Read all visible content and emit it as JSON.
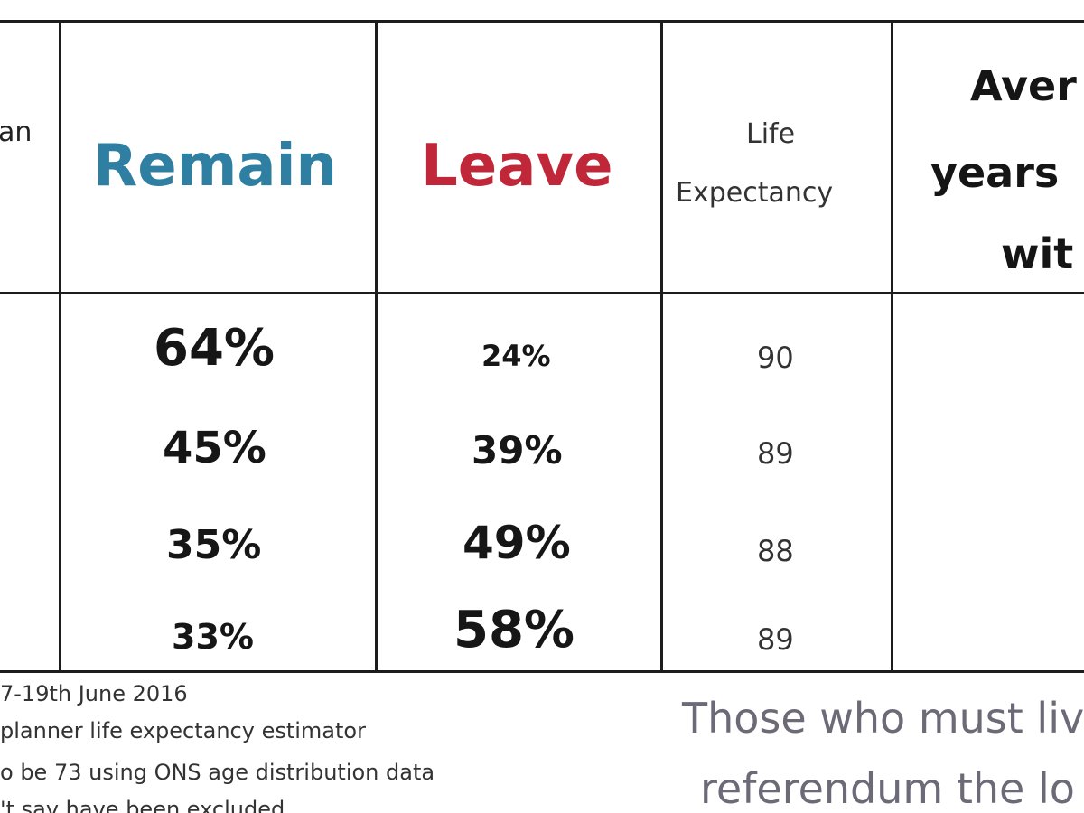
{
  "header": {
    "col0_partial": "an",
    "remain": "Remain",
    "leave": "Leave",
    "life_expectancy_line1": "Life",
    "life_expectancy_line2": "Expectancy",
    "avg_line1": "Aver",
    "avg_line2": "years",
    "avg_line3": "wit"
  },
  "rows": [
    {
      "remain": "64%",
      "leave": "24%",
      "life": "90"
    },
    {
      "remain": "45%",
      "leave": "39%",
      "life": "89"
    },
    {
      "remain": "35%",
      "leave": "49%",
      "life": "88"
    },
    {
      "remain": "33%",
      "leave": "58%",
      "life": "89"
    }
  ],
  "footnotes": {
    "line1": "7-19th June 2016",
    "line2": "planner life expectancy estimator",
    "line3": "o be 73 using ONS age distribution data",
    "line4": "'t say have been excluded"
  },
  "quote": {
    "line1": "Those who must liv",
    "line2": "referendum the lo"
  },
  "colors": {
    "remain": "#2e7fa2",
    "leave": "#c0283a",
    "grid": "#1c1c1c"
  }
}
